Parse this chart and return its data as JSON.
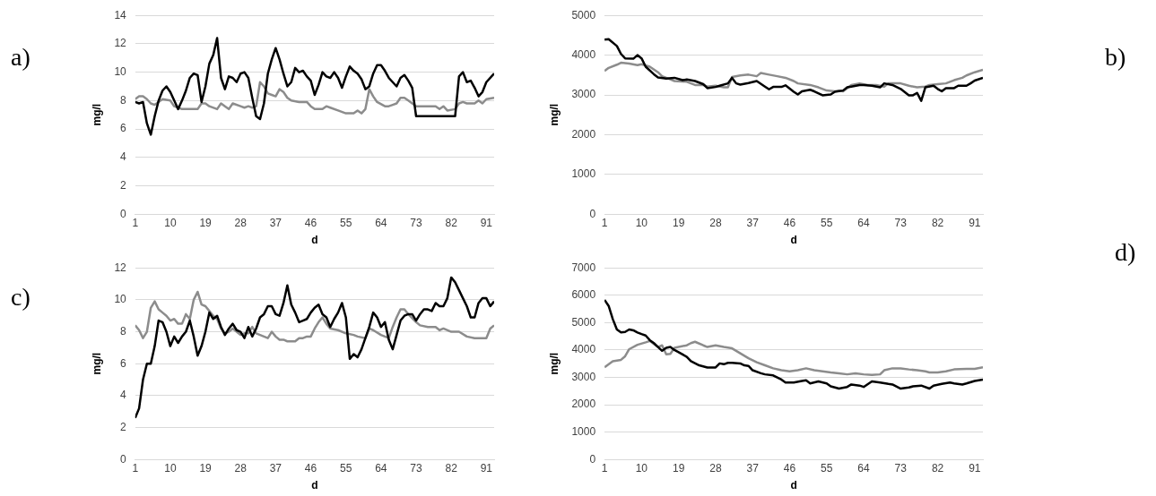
{
  "chart_data": [
    {
      "type": "line",
      "annotations": [
        "a)"
      ],
      "xlabel": "d",
      "ylabel": "mg/l",
      "xlim": [
        1,
        93
      ],
      "xticks": [
        1,
        10,
        19,
        28,
        37,
        46,
        55,
        64,
        73,
        82,
        91
      ],
      "ylim": [
        0,
        14
      ],
      "yticks": [
        0,
        2,
        4,
        6,
        8,
        10,
        12,
        14
      ],
      "grid": "y",
      "legend": false,
      "marker": "none",
      "line_style": "solid",
      "series": [
        {
          "color": "#000000",
          "x": [
            1,
            2,
            3,
            4,
            5,
            6,
            7,
            8,
            9,
            10,
            11,
            12,
            13,
            14,
            15,
            16,
            17,
            18,
            19,
            20,
            21,
            22,
            23,
            24,
            25,
            26,
            27,
            28,
            29,
            30,
            31,
            32,
            33,
            34,
            35,
            36,
            37,
            38,
            39,
            40,
            41,
            42,
            43,
            44,
            45,
            46,
            47,
            48,
            49,
            50,
            51,
            52,
            53,
            54,
            55,
            56,
            57,
            58,
            59,
            60,
            61,
            62,
            63,
            64,
            65,
            66,
            67,
            68,
            69,
            70,
            71,
            72,
            73,
            83,
            84,
            85,
            86,
            87,
            88,
            89,
            90,
            91,
            93
          ],
          "values": [
            7.9,
            7.8,
            7.9,
            6.4,
            5.6,
            6.9,
            8.0,
            8.7,
            9.0,
            8.6,
            8.0,
            7.4,
            8.0,
            8.7,
            9.6,
            9.9,
            9.8,
            7.9,
            9.0,
            10.6,
            11.2,
            12.4,
            9.6,
            8.8,
            9.7,
            9.6,
            9.3,
            9.9,
            10.0,
            9.6,
            8.2,
            6.9,
            6.7,
            7.8,
            9.9,
            10.9,
            11.7,
            10.9,
            9.9,
            9.0,
            9.3,
            10.3,
            10.0,
            10.1,
            9.7,
            9.4,
            8.4,
            9.1,
            10.0,
            9.7,
            9.6,
            10.0,
            9.6,
            8.9,
            9.7,
            10.4,
            10.1,
            9.9,
            9.5,
            8.8,
            9.0,
            9.9,
            10.5,
            10.5,
            10.1,
            9.6,
            9.3,
            9.0,
            9.6,
            9.8,
            9.4,
            8.9,
            6.9,
            6.9,
            9.7,
            10.0,
            9.3,
            9.4,
            8.9,
            8.3,
            8.6,
            9.3,
            9.9
          ]
        },
        {
          "color": "#8c8c8c",
          "x": [
            1,
            2,
            3,
            4,
            5,
            6,
            7,
            8,
            10,
            11,
            12,
            13,
            17,
            18,
            19,
            20,
            22,
            23,
            24,
            25,
            26,
            28,
            29,
            30,
            31,
            32,
            33,
            34,
            35,
            36,
            37,
            38,
            39,
            40,
            41,
            43,
            45,
            46,
            47,
            49,
            50,
            51,
            53,
            55,
            57,
            58,
            59,
            60,
            61,
            62,
            63,
            65,
            66,
            67,
            68,
            69,
            70,
            71,
            72,
            73,
            78,
            79,
            80,
            81,
            83,
            84,
            85,
            86,
            88,
            89,
            90,
            91,
            93
          ],
          "values": [
            8.1,
            8.3,
            8.3,
            8.1,
            7.8,
            7.7,
            7.9,
            8.1,
            8.0,
            7.6,
            7.5,
            7.4,
            7.4,
            7.8,
            7.8,
            7.6,
            7.4,
            7.8,
            7.6,
            7.4,
            7.8,
            7.6,
            7.5,
            7.6,
            7.5,
            7.6,
            9.3,
            9.0,
            8.5,
            8.4,
            8.3,
            8.8,
            8.6,
            8.2,
            8.0,
            7.9,
            7.9,
            7.6,
            7.4,
            7.4,
            7.6,
            7.5,
            7.3,
            7.1,
            7.1,
            7.3,
            7.1,
            7.4,
            8.8,
            8.3,
            7.9,
            7.6,
            7.6,
            7.7,
            7.8,
            8.2,
            8.2,
            8.0,
            7.8,
            7.6,
            7.6,
            7.4,
            7.6,
            7.3,
            7.4,
            7.8,
            7.9,
            7.8,
            7.8,
            8.0,
            7.8,
            8.1,
            8.2
          ]
        }
      ]
    },
    {
      "type": "line",
      "annotations": [
        "b)"
      ],
      "xlabel": "d",
      "ylabel": "mg/l",
      "xlim": [
        1,
        93
      ],
      "xticks": [
        1,
        10,
        19,
        28,
        37,
        46,
        55,
        64,
        73,
        82,
        91
      ],
      "ylim": [
        0,
        5000
      ],
      "yticks": [
        0,
        1000,
        2000,
        3000,
        4000,
        5000
      ],
      "grid": "y",
      "legend": false,
      "marker": "none",
      "line_style": "solid",
      "series": [
        {
          "color": "#000000",
          "x": [
            1,
            2,
            4,
            5,
            6,
            8,
            9,
            10,
            11,
            13,
            14,
            16,
            18,
            20,
            21,
            23,
            25,
            26,
            28,
            29,
            31,
            32,
            33,
            34,
            36,
            38,
            40,
            41,
            42,
            44,
            45,
            47,
            48,
            49,
            51,
            52,
            54,
            56,
            57,
            59,
            60,
            61,
            63,
            64,
            66,
            68,
            69,
            71,
            73,
            75,
            76,
            77,
            78,
            79,
            81,
            82,
            83,
            84,
            86,
            87,
            89,
            90,
            91,
            93
          ],
          "values": [
            4390,
            4400,
            4230,
            4030,
            3920,
            3910,
            4000,
            3920,
            3710,
            3520,
            3440,
            3410,
            3430,
            3370,
            3390,
            3350,
            3270,
            3170,
            3200,
            3230,
            3290,
            3430,
            3290,
            3260,
            3300,
            3350,
            3210,
            3140,
            3200,
            3200,
            3240,
            3080,
            3010,
            3090,
            3130,
            3090,
            2990,
            3010,
            3080,
            3110,
            3190,
            3210,
            3250,
            3250,
            3230,
            3190,
            3290,
            3250,
            3150,
            2990,
            2990,
            3050,
            2850,
            3190,
            3230,
            3150,
            3090,
            3170,
            3170,
            3230,
            3230,
            3290,
            3360,
            3430
          ]
        },
        {
          "color": "#8c8c8c",
          "x": [
            1,
            2,
            4,
            5,
            7,
            9,
            10,
            12,
            14,
            15,
            17,
            18,
            21,
            23,
            25,
            26,
            28,
            30,
            31,
            32,
            34,
            36,
            38,
            39,
            41,
            43,
            45,
            47,
            48,
            51,
            53,
            55,
            57,
            58,
            59,
            61,
            63,
            65,
            67,
            69,
            70,
            73,
            75,
            77,
            79,
            80,
            82,
            84,
            86,
            88,
            89,
            91,
            93
          ],
          "values": [
            3600,
            3680,
            3760,
            3810,
            3790,
            3750,
            3770,
            3710,
            3570,
            3470,
            3390,
            3350,
            3330,
            3250,
            3250,
            3210,
            3230,
            3190,
            3190,
            3450,
            3490,
            3510,
            3470,
            3550,
            3510,
            3470,
            3430,
            3350,
            3290,
            3250,
            3190,
            3110,
            3090,
            3110,
            3090,
            3250,
            3290,
            3250,
            3250,
            3210,
            3290,
            3290,
            3230,
            3190,
            3210,
            3250,
            3270,
            3290,
            3370,
            3430,
            3490,
            3570,
            3630
          ]
        }
      ]
    },
    {
      "type": "line",
      "annotations": [
        "c)"
      ],
      "xlabel": "d",
      "ylabel": "mg/l",
      "xlim": [
        1,
        93
      ],
      "xticks": [
        1,
        10,
        19,
        28,
        37,
        46,
        55,
        64,
        73,
        82,
        91
      ],
      "ylim": [
        0,
        12
      ],
      "yticks": [
        0,
        2,
        4,
        6,
        8,
        10,
        12
      ],
      "grid": "y",
      "legend": false,
      "marker": "none",
      "line_style": "solid",
      "series": [
        {
          "color": "#000000",
          "x": [
            1,
            2,
            3,
            4,
            5,
            6,
            7,
            8,
            9,
            10,
            11,
            12,
            13,
            14,
            15,
            16,
            17,
            18,
            19,
            20,
            21,
            22,
            23,
            24,
            25,
            26,
            27,
            28,
            29,
            30,
            31,
            32,
            33,
            34,
            35,
            36,
            37,
            38,
            39,
            40,
            41,
            42,
            43,
            44,
            45,
            46,
            47,
            48,
            49,
            50,
            51,
            52,
            53,
            54,
            55,
            56,
            57,
            58,
            59,
            60,
            61,
            62,
            63,
            64,
            65,
            66,
            67,
            68,
            69,
            70,
            71,
            72,
            73,
            74,
            75,
            76,
            77,
            78,
            79,
            80,
            81,
            82,
            83,
            84,
            85,
            86,
            87,
            88,
            89,
            90,
            91,
            92,
            93
          ],
          "values": [
            2.6,
            3.2,
            5.0,
            6.0,
            6.0,
            7.1,
            8.7,
            8.6,
            8.0,
            7.1,
            7.7,
            7.3,
            7.7,
            8.0,
            8.7,
            7.7,
            6.5,
            7.1,
            8.0,
            9.2,
            8.8,
            9.0,
            8.3,
            7.8,
            8.2,
            8.5,
            8.1,
            8.0,
            7.6,
            8.3,
            7.7,
            8.2,
            8.9,
            9.1,
            9.6,
            9.6,
            9.1,
            9.0,
            9.8,
            10.9,
            9.7,
            9.2,
            8.6,
            8.7,
            8.8,
            9.2,
            9.5,
            9.7,
            9.1,
            8.9,
            8.3,
            8.8,
            9.2,
            9.8,
            8.9,
            6.3,
            6.6,
            6.4,
            6.9,
            7.6,
            8.3,
            9.2,
            8.9,
            8.3,
            8.6,
            7.5,
            6.9,
            7.8,
            8.7,
            9.0,
            9.1,
            9.1,
            8.7,
            9.1,
            9.4,
            9.4,
            9.3,
            9.8,
            9.6,
            9.6,
            10.1,
            11.4,
            11.1,
            10.6,
            10.1,
            9.6,
            8.9,
            8.9,
            9.8,
            10.1,
            10.1,
            9.6,
            9.9
          ]
        },
        {
          "color": "#8c8c8c",
          "x": [
            1,
            2,
            3,
            4,
            5,
            6,
            7,
            8,
            9,
            10,
            11,
            12,
            13,
            14,
            15,
            16,
            17,
            18,
            19,
            20,
            21,
            22,
            23,
            24,
            25,
            26,
            27,
            28,
            29,
            30,
            31,
            32,
            33,
            34,
            35,
            36,
            37,
            38,
            39,
            40,
            42,
            43,
            44,
            45,
            46,
            47,
            48,
            49,
            50,
            51,
            53,
            55,
            57,
            58,
            60,
            61,
            62,
            64,
            66,
            67,
            68,
            69,
            70,
            71,
            73,
            74,
            76,
            78,
            79,
            80,
            82,
            84,
            86,
            88,
            90,
            91,
            92,
            93
          ],
          "values": [
            8.4,
            8.1,
            7.6,
            8.0,
            9.5,
            9.9,
            9.4,
            9.2,
            9.0,
            8.7,
            8.8,
            8.5,
            8.5,
            9.1,
            8.8,
            10.0,
            10.5,
            9.7,
            9.6,
            9.3,
            9.0,
            8.8,
            8.2,
            7.9,
            8.0,
            8.2,
            8.0,
            7.8,
            7.9,
            7.9,
            8.3,
            7.9,
            7.8,
            7.7,
            7.6,
            8.0,
            7.7,
            7.5,
            7.5,
            7.4,
            7.4,
            7.6,
            7.6,
            7.7,
            7.7,
            8.2,
            8.6,
            8.9,
            8.5,
            8.2,
            8.1,
            7.9,
            7.8,
            7.7,
            7.6,
            8.2,
            8.1,
            7.8,
            7.6,
            8.3,
            8.9,
            9.4,
            9.4,
            9.1,
            8.6,
            8.4,
            8.3,
            8.3,
            8.1,
            8.2,
            8.0,
            8.0,
            7.7,
            7.6,
            7.6,
            7.6,
            8.2,
            8.4
          ]
        }
      ]
    },
    {
      "type": "line",
      "annotations": [
        "d)"
      ],
      "xlabel": "d",
      "ylabel": "mg/l",
      "xlim": [
        1,
        93
      ],
      "xticks": [
        1,
        10,
        19,
        28,
        37,
        46,
        55,
        64,
        73,
        82,
        91
      ],
      "ylim": [
        0,
        7000
      ],
      "yticks": [
        0,
        1000,
        2000,
        3000,
        4000,
        5000,
        6000,
        7000
      ],
      "grid": "y",
      "legend": false,
      "marker": "none",
      "line_style": "solid",
      "series": [
        {
          "color": "#000000",
          "x": [
            1,
            2,
            3,
            4,
            5,
            6,
            7,
            8,
            9,
            10,
            11,
            12,
            13,
            14,
            15,
            16,
            17,
            18,
            19,
            21,
            22,
            24,
            25,
            26,
            28,
            29,
            30,
            31,
            32,
            34,
            35,
            36,
            37,
            39,
            40,
            42,
            44,
            45,
            47,
            49,
            50,
            51,
            53,
            55,
            56,
            58,
            60,
            61,
            63,
            64,
            66,
            68,
            70,
            71,
            73,
            75,
            76,
            78,
            80,
            81,
            83,
            85,
            86,
            88,
            89,
            91,
            93
          ],
          "values": [
            5830,
            5610,
            5130,
            4750,
            4640,
            4660,
            4750,
            4720,
            4640,
            4580,
            4530,
            4360,
            4250,
            4110,
            3970,
            4080,
            4110,
            4000,
            3920,
            3750,
            3590,
            3440,
            3400,
            3360,
            3360,
            3510,
            3480,
            3530,
            3530,
            3510,
            3440,
            3420,
            3260,
            3150,
            3110,
            3070,
            2920,
            2810,
            2810,
            2870,
            2890,
            2780,
            2850,
            2780,
            2670,
            2590,
            2650,
            2740,
            2700,
            2650,
            2850,
            2810,
            2760,
            2740,
            2590,
            2630,
            2670,
            2700,
            2590,
            2700,
            2760,
            2810,
            2780,
            2740,
            2780,
            2870,
            2920
          ]
        },
        {
          "color": "#8c8c8c",
          "x": [
            1,
            3,
            5,
            6,
            7,
            9,
            11,
            12,
            13,
            14,
            15,
            16,
            17,
            18,
            19,
            21,
            22,
            23,
            25,
            26,
            28,
            30,
            32,
            34,
            36,
            38,
            40,
            42,
            44,
            46,
            48,
            50,
            52,
            54,
            56,
            58,
            60,
            62,
            64,
            66,
            68,
            69,
            71,
            73,
            75,
            77,
            79,
            80,
            82,
            84,
            86,
            89,
            91,
            93
          ],
          "values": [
            3370,
            3590,
            3640,
            3770,
            4030,
            4190,
            4280,
            4330,
            4220,
            4110,
            4170,
            3840,
            3860,
            4080,
            4110,
            4170,
            4250,
            4300,
            4170,
            4110,
            4170,
            4110,
            4060,
            3880,
            3700,
            3550,
            3440,
            3330,
            3260,
            3220,
            3260,
            3330,
            3260,
            3220,
            3180,
            3150,
            3110,
            3150,
            3110,
            3090,
            3110,
            3260,
            3330,
            3330,
            3290,
            3260,
            3220,
            3180,
            3180,
            3220,
            3290,
            3310,
            3310,
            3370
          ]
        }
      ]
    }
  ]
}
